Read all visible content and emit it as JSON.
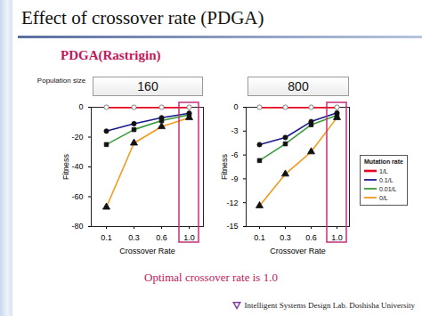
{
  "title": "Effect of crossover rate (PDGA)",
  "subtitle": "PDGA(Rastrigin)",
  "panel_label": "Population size",
  "conclusion": "Optimal crossover rate is 1.0",
  "footer": "Intelligent Systems Design Lab. Doshisha University",
  "chart_data": [
    {
      "type": "line",
      "title": "160",
      "x_label": "Crossover Rate",
      "y_label": "Fitness",
      "categories": [
        "0.1",
        "0.3",
        "0.6",
        "1.0"
      ],
      "ylim": [
        -80,
        0
      ],
      "yticks": [
        0,
        -20,
        -40,
        -60,
        -80
      ],
      "grid": false,
      "series": [
        {
          "name": "1/L",
          "color": "#e8001c",
          "marker": "circle-open",
          "values": [
            0,
            0,
            0,
            0
          ]
        },
        {
          "name": "0.1/L",
          "color": "#1a1a8c",
          "marker": "circle",
          "values": [
            -16,
            -11,
            -7,
            -4
          ]
        },
        {
          "name": "0.01/L",
          "color": "#3a9a3a",
          "marker": "square",
          "values": [
            -25,
            -15,
            -9,
            -5
          ]
        },
        {
          "name": "0/L",
          "color": "#f29a1e",
          "marker": "triangle",
          "values": [
            -67,
            -24,
            -13,
            -7
          ]
        }
      ]
    },
    {
      "type": "line",
      "title": "800",
      "x_label": "Crossover Rate",
      "y_label": "Fitness",
      "categories": [
        "0.1",
        "0.3",
        "0.6",
        "1.0"
      ],
      "ylim": [
        -15,
        0
      ],
      "yticks": [
        0,
        -3,
        -6,
        -9,
        -12,
        -15
      ],
      "grid": false,
      "legend": "right",
      "legend_title": "Mutation rate",
      "series": [
        {
          "name": "1/L",
          "color": "#e8001c",
          "marker": "circle-open",
          "values": [
            0,
            0,
            0,
            0
          ]
        },
        {
          "name": "0.1/L",
          "color": "#1a1a8c",
          "marker": "circle",
          "values": [
            -4.7,
            -3.8,
            -1.8,
            -0.7
          ]
        },
        {
          "name": "0.01/L",
          "color": "#3a9a3a",
          "marker": "square",
          "values": [
            -6.7,
            -4.6,
            -2.2,
            -1.0
          ]
        },
        {
          "name": "0/L",
          "color": "#f29a1e",
          "marker": "triangle",
          "values": [
            -12.4,
            -8.4,
            -5.6,
            -1.3
          ]
        }
      ]
    }
  ]
}
